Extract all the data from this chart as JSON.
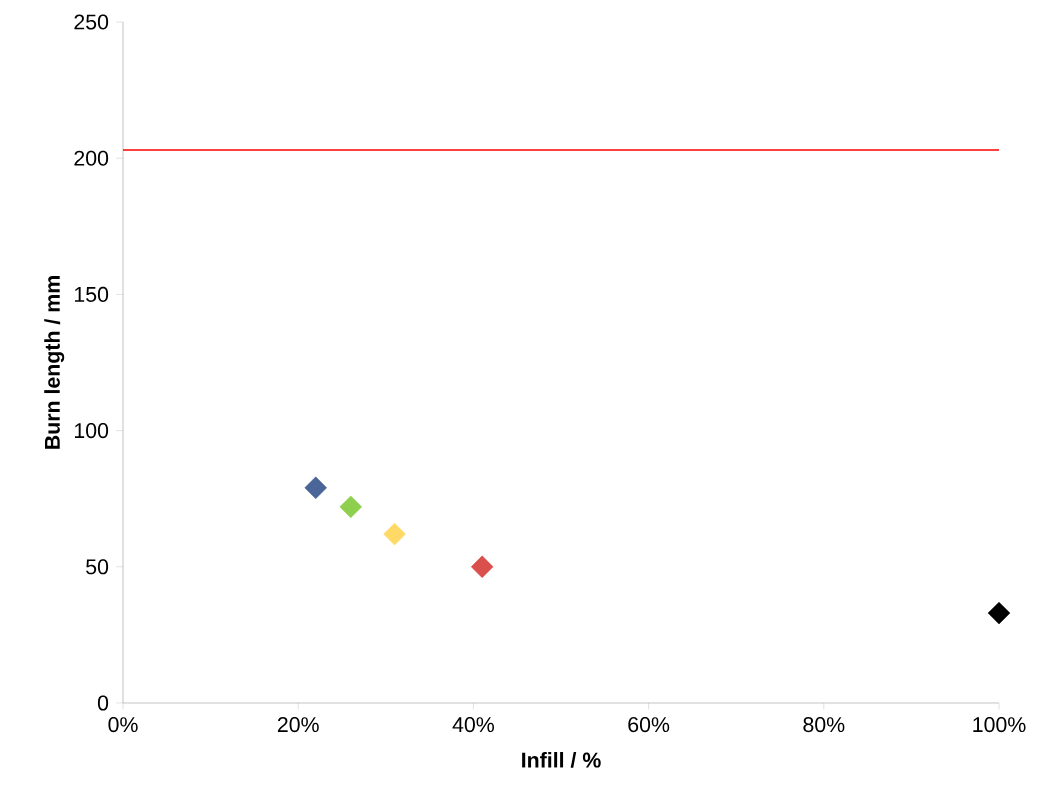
{
  "chart_data": {
    "type": "scatter",
    "xlabel": "Infill / %",
    "ylabel": "Burn length / mm",
    "x": [
      22,
      26,
      31,
      41,
      100
    ],
    "values": [
      79,
      72,
      62,
      50,
      33
    ],
    "colors": [
      "#4a6598",
      "#8fcf4f",
      "#ffd966",
      "#d9504c",
      "#000000"
    ],
    "marker": "diamond",
    "xlim": [
      0,
      100
    ],
    "xticks": [
      {
        "value": 0,
        "label": "0%"
      },
      {
        "value": 20,
        "label": "20%"
      },
      {
        "value": 40,
        "label": "40%"
      },
      {
        "value": 60,
        "label": "60%"
      },
      {
        "value": 80,
        "label": "80%"
      },
      {
        "value": 100,
        "label": "100%"
      }
    ],
    "ylim": [
      0,
      250
    ],
    "yticks": [
      0,
      50,
      100,
      150,
      200,
      250
    ],
    "ref_lines": [
      {
        "axis": "y",
        "value": 203,
        "color": "#ff0000"
      }
    ],
    "grid": false
  }
}
